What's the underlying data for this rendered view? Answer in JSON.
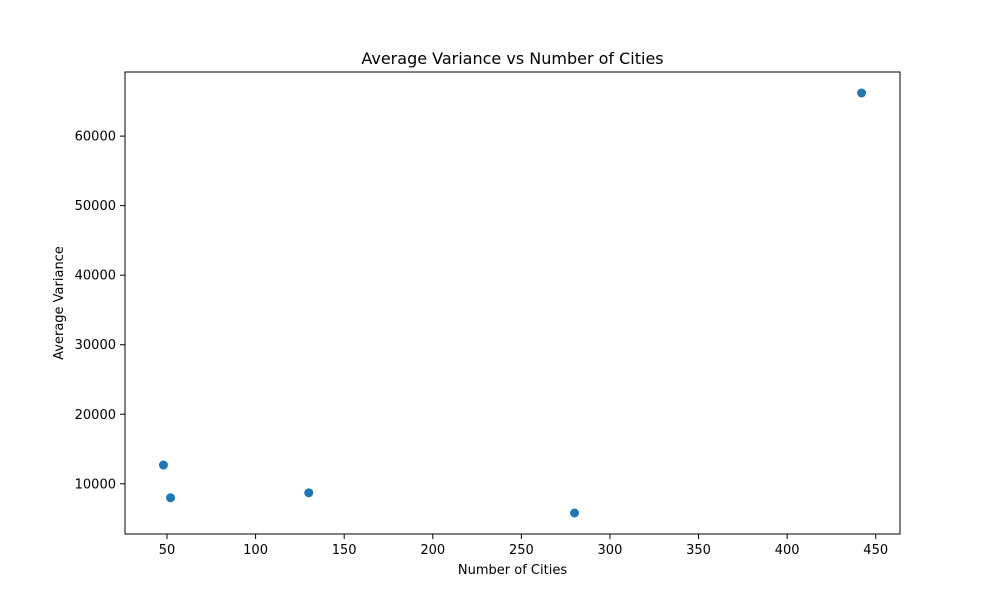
{
  "chart_data": {
    "type": "scatter",
    "title": "Average Variance vs Number of Cities",
    "xlabel": "Number of Cities",
    "ylabel": "Average Variance",
    "x": [
      48,
      52,
      130,
      280,
      442
    ],
    "y": [
      12700,
      8000,
      8700,
      5800,
      66200
    ],
    "xlim": [
      26.3,
      463.7
    ],
    "ylim": [
      2780,
      69220
    ],
    "xticks": [
      50,
      100,
      150,
      200,
      250,
      300,
      350,
      400,
      450
    ],
    "yticks": [
      10000,
      20000,
      30000,
      40000,
      50000,
      60000
    ],
    "grid": false,
    "marker_color": "#1f77b4"
  }
}
